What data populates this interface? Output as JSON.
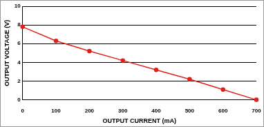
{
  "chart_data": {
    "type": "line",
    "x_label": "OUTPUT CURRENT (mA)",
    "y_label": "OUTPUT VOLTAGE (V)",
    "x": [
      0,
      100,
      200,
      300,
      400,
      500,
      600,
      700
    ],
    "values": [
      7.8,
      6.3,
      5.2,
      4.2,
      3.2,
      2.2,
      1.1,
      0
    ],
    "color": "#e0201b",
    "marker": "circle",
    "xlim": [
      0,
      700
    ],
    "xticks": [
      0,
      100,
      200,
      300,
      400,
      500,
      600,
      700
    ],
    "ylim": [
      0,
      10
    ],
    "yticks": [
      0,
      2,
      4,
      6,
      8,
      10
    ],
    "grid": true
  }
}
